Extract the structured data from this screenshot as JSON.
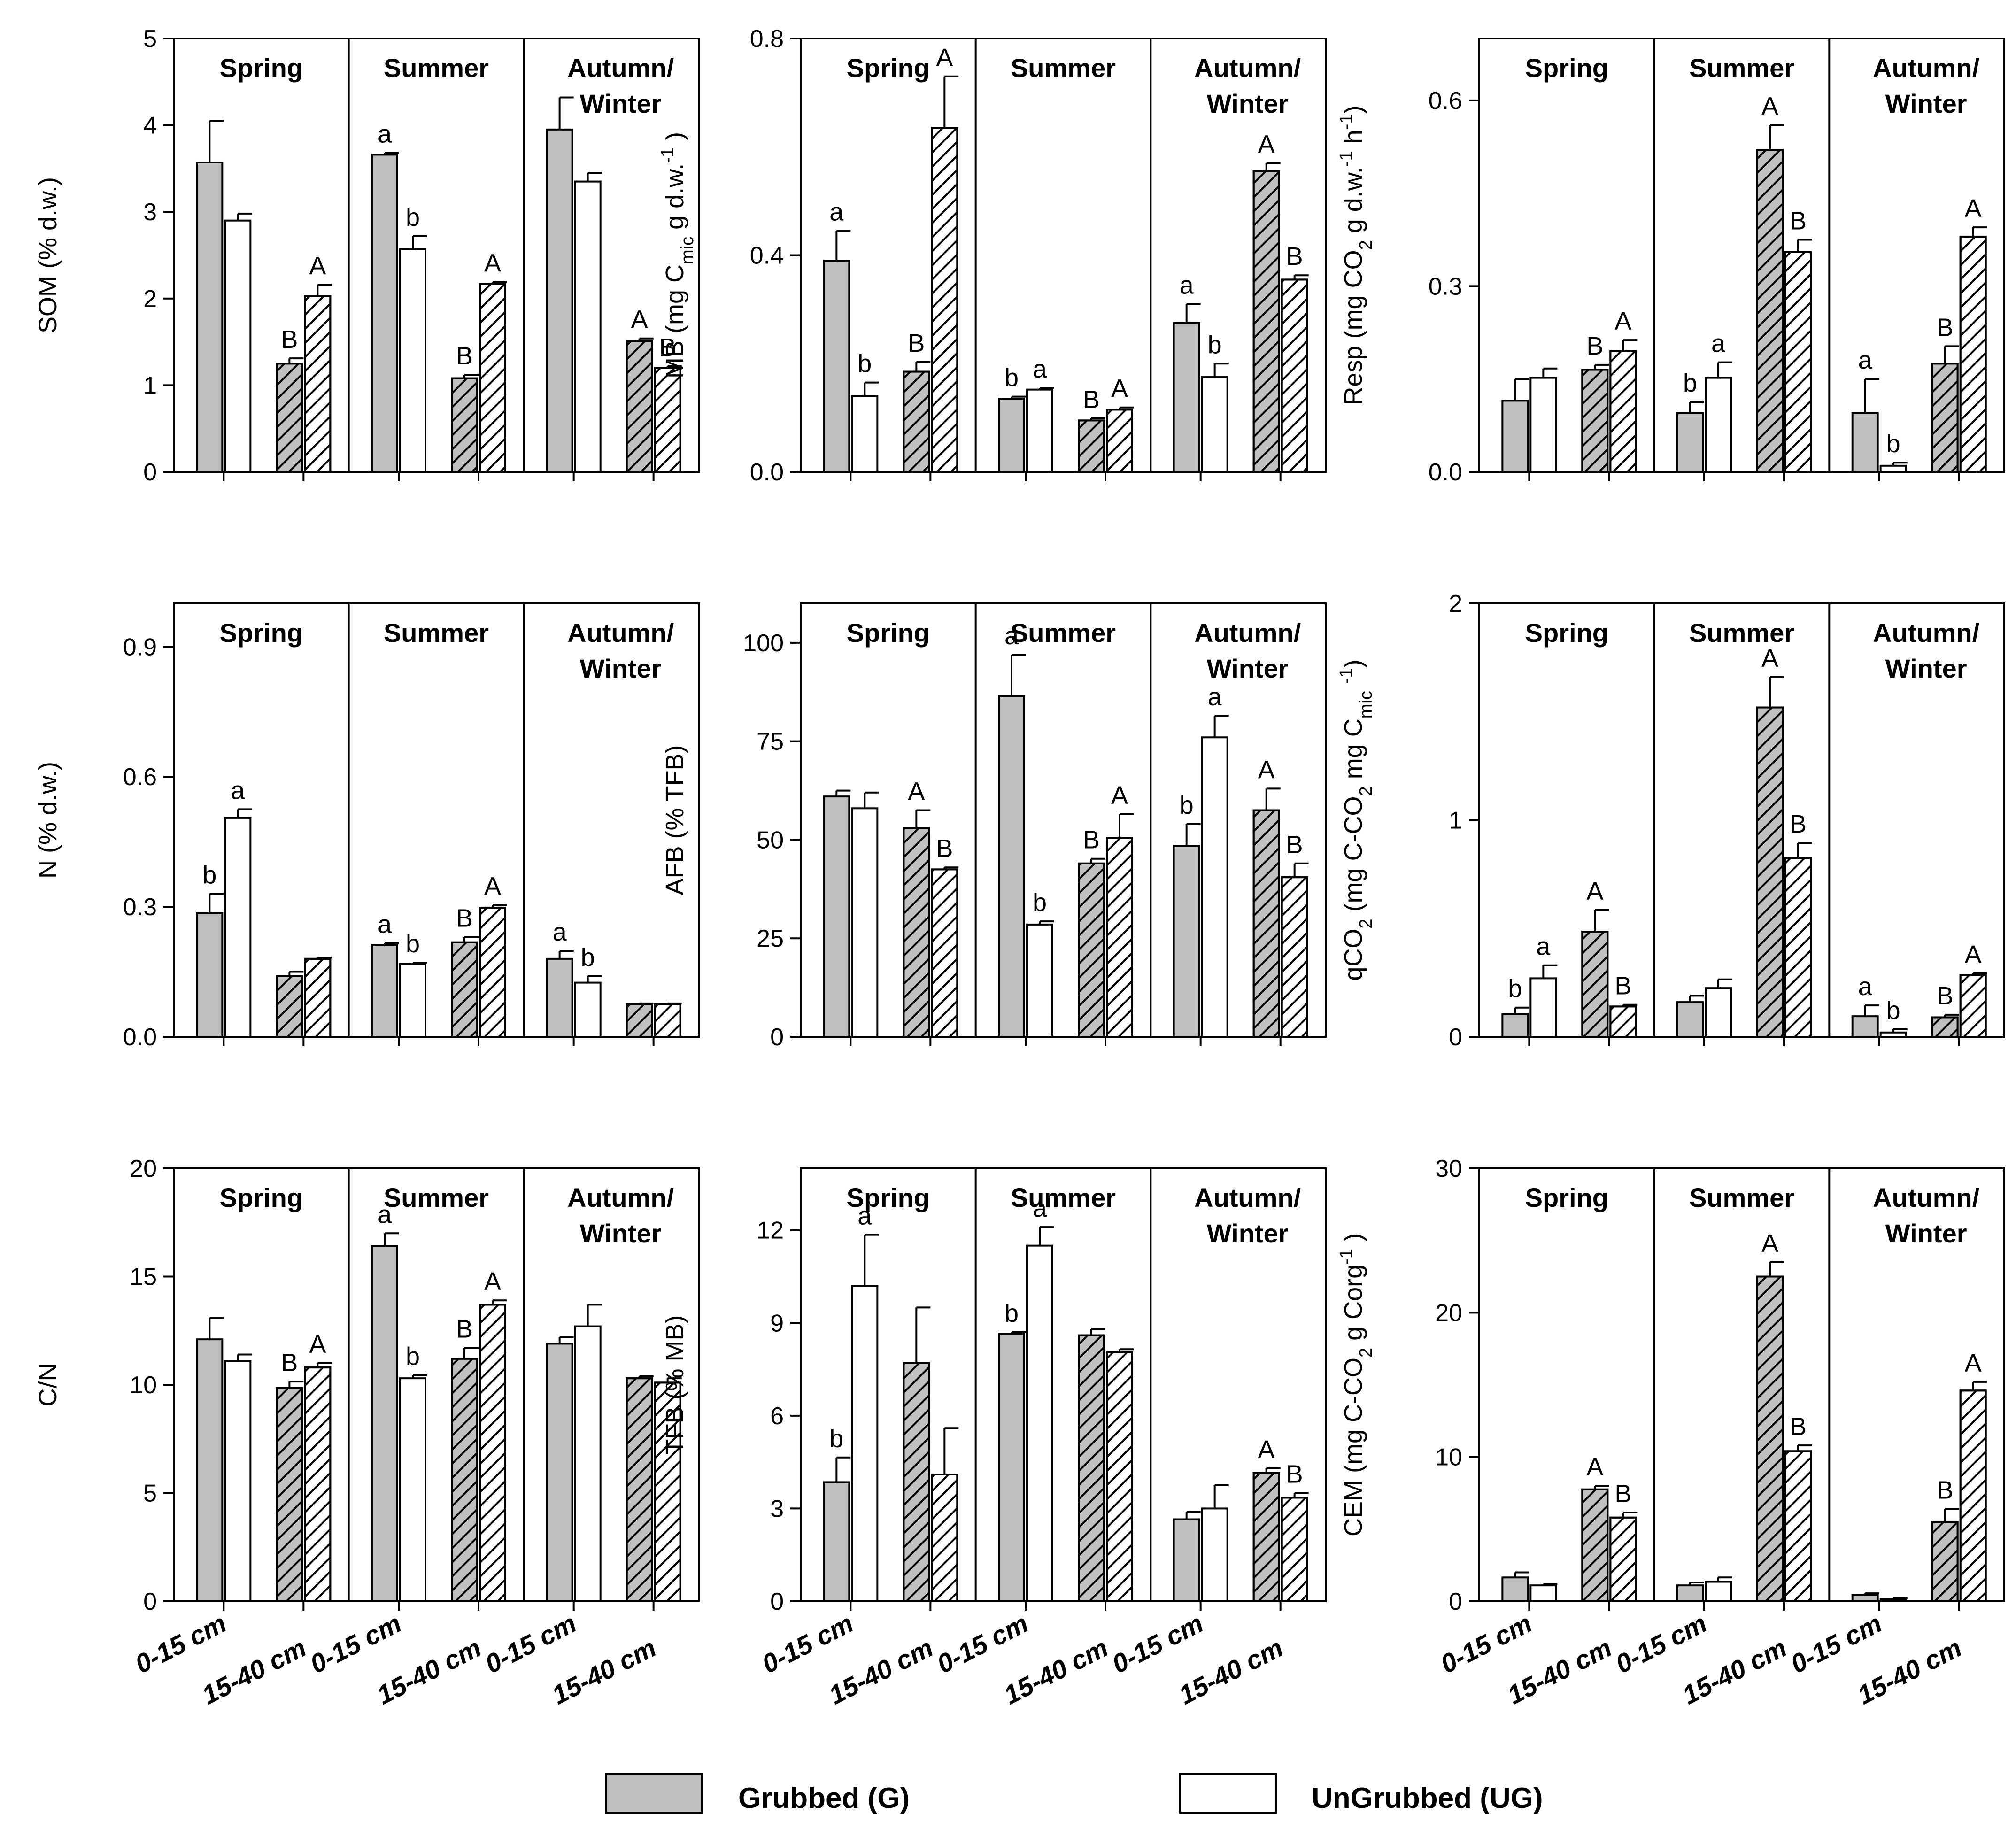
{
  "colors": {
    "grubbed": "#c0c0c0",
    "ungrubbed": "#ffffff",
    "stroke": "#000000"
  },
  "legend": [
    {
      "key": "grubbed",
      "label": "Grubbed (G)"
    },
    {
      "key": "ungrubbed",
      "label": "UnGrubbed (UG)"
    }
  ],
  "chart_data": [
    {
      "type": "bar",
      "id": "som",
      "ylabel": [
        {
          "t": "SOM (% d.w.)"
        }
      ],
      "ylim": [
        0,
        5
      ],
      "ticks": [
        "0",
        "1",
        "2",
        "3",
        "4",
        "5"
      ],
      "tick_values": [
        0,
        1,
        2,
        3,
        4,
        5
      ],
      "seasons": [
        [
          "Spring"
        ],
        [
          "Summer"
        ],
        [
          "Autumn/",
          "Winter"
        ]
      ],
      "x_categories": [],
      "values": [
        [
          3.57,
          2.9,
          1.25,
          2.03
        ],
        [
          3.66,
          2.57,
          1.08,
          2.17
        ],
        [
          3.95,
          3.35,
          1.51,
          1.2
        ]
      ],
      "errors": [
        [
          0.48,
          0.08,
          0.06,
          0.13
        ],
        [
          0.02,
          0.15,
          0.04,
          0.02
        ],
        [
          0.37,
          0.1,
          0.03,
          0.02
        ]
      ],
      "sig": [
        [
          "",
          "",
          "B",
          "A"
        ],
        [
          "a",
          "b",
          "B",
          "A"
        ],
        [
          "",
          "",
          "A",
          "B"
        ]
      ]
    },
    {
      "type": "bar",
      "id": "mb",
      "ylabel": [
        {
          "t": "MB (mg C"
        },
        {
          "t": "mic",
          "s": "sub"
        },
        {
          "t": " g d.w."
        },
        {
          "t": "-1",
          "s": "sup"
        },
        {
          "t": " )"
        }
      ],
      "ylim": [
        0,
        0.8
      ],
      "ticks": [
        "0.0",
        "0.4",
        "0.8"
      ],
      "tick_values": [
        0,
        0.4,
        0.8
      ],
      "seasons": [
        [
          "Spring"
        ],
        [
          "Summer"
        ],
        [
          "Autumn/",
          "Winter"
        ]
      ],
      "x_categories": [],
      "values": [
        [
          0.39,
          0.14,
          0.185,
          0.635
        ],
        [
          0.135,
          0.152,
          0.095,
          0.115
        ],
        [
          0.275,
          0.175,
          0.555,
          0.355
        ]
      ],
      "errors": [
        [
          0.055,
          0.025,
          0.018,
          0.095
        ],
        [
          0.004,
          0.003,
          0.004,
          0.004
        ],
        [
          0.035,
          0.025,
          0.015,
          0.008
        ]
      ],
      "sig": [
        [
          "a",
          "b",
          "B",
          "A"
        ],
        [
          "b",
          "a",
          "B",
          "A"
        ],
        [
          "a",
          "b",
          "A",
          "B"
        ]
      ]
    },
    {
      "type": "bar",
      "id": "resp",
      "ylabel": [
        {
          "t": "Resp (mg CO"
        },
        {
          "t": "2",
          "s": "sub"
        },
        {
          "t": " g d.w."
        },
        {
          "t": "-1",
          "s": "sup"
        },
        {
          "t": " h"
        },
        {
          "t": "-1",
          "s": "sup"
        },
        {
          "t": ")"
        }
      ],
      "ylim": [
        0,
        0.7
      ],
      "ticks": [
        "0.0",
        "0.3",
        "0.6"
      ],
      "tick_values": [
        0,
        0.3,
        0.6
      ],
      "seasons": [
        [
          "Spring"
        ],
        [
          "Summer"
        ],
        [
          "Autumn/",
          "Winter"
        ]
      ],
      "x_categories": [],
      "values": [
        [
          0.115,
          0.152,
          0.165,
          0.195
        ],
        [
          0.095,
          0.152,
          0.52,
          0.355
        ],
        [
          0.095,
          0.01,
          0.175,
          0.38
        ]
      ],
      "errors": [
        [
          0.035,
          0.015,
          0.008,
          0.018
        ],
        [
          0.018,
          0.025,
          0.04,
          0.02
        ],
        [
          0.055,
          0.005,
          0.028,
          0.015
        ]
      ],
      "sig": [
        [
          "",
          "",
          "B",
          "A"
        ],
        [
          "b",
          "a",
          "A",
          "B"
        ],
        [
          "a",
          "b",
          "B",
          "A"
        ]
      ]
    },
    {
      "type": "bar",
      "id": "n",
      "ylabel": [
        {
          "t": "N (% d.w.)"
        }
      ],
      "ylim": [
        0,
        1.0
      ],
      "ticks": [
        "0.0",
        "0.3",
        "0.6",
        "0.9"
      ],
      "tick_values": [
        0,
        0.3,
        0.6,
        0.9
      ],
      "seasons": [
        [
          "Spring"
        ],
        [
          "Summer"
        ],
        [
          "Autumn/",
          "Winter"
        ]
      ],
      "x_categories": [],
      "values": [
        [
          0.285,
          0.505,
          0.14,
          0.18
        ],
        [
          0.212,
          0.168,
          0.218,
          0.298
        ],
        [
          0.18,
          0.125,
          0.075,
          0.075
        ]
      ],
      "errors": [
        [
          0.045,
          0.02,
          0.01,
          0.003
        ],
        [
          0.004,
          0.003,
          0.012,
          0.006
        ],
        [
          0.018,
          0.015,
          0.002,
          0.002
        ]
      ],
      "sig": [
        [
          "b",
          "a",
          "",
          ""
        ],
        [
          "a",
          "b",
          "B",
          "A"
        ],
        [
          "a",
          "b",
          "",
          ""
        ]
      ]
    },
    {
      "type": "bar",
      "id": "afb",
      "ylabel": [
        {
          "t": "AFB (% TFB)"
        }
      ],
      "ylim": [
        0,
        110
      ],
      "ticks": [
        "0",
        "25",
        "50",
        "75",
        "100"
      ],
      "tick_values": [
        0,
        25,
        50,
        75,
        100
      ],
      "seasons": [
        [
          "Spring"
        ],
        [
          "Summer"
        ],
        [
          "Autumn/",
          "Winter"
        ]
      ],
      "x_categories": [],
      "values": [
        [
          61,
          58,
          53,
          42.5
        ],
        [
          86.5,
          28.5,
          44,
          50.5
        ],
        [
          48.5,
          76,
          57.5,
          40.5
        ]
      ],
      "errors": [
        [
          1.5,
          4,
          4.5,
          0.5
        ],
        [
          10.5,
          0.8,
          1.2,
          6
        ],
        [
          5.5,
          5.5,
          5.5,
          3.5
        ]
      ],
      "sig": [
        [
          "",
          "",
          "A",
          "B"
        ],
        [
          "a",
          "b",
          "B",
          "A"
        ],
        [
          "b",
          "a",
          "A",
          "B"
        ]
      ]
    },
    {
      "type": "bar",
      "id": "qco2",
      "ylabel": [
        {
          "t": "qCO"
        },
        {
          "t": "2",
          "s": "sub"
        },
        {
          "t": " (mg C-CO"
        },
        {
          "t": "2",
          "s": "sub"
        },
        {
          "t": " mg C"
        },
        {
          "t": "mic",
          "s": "sub"
        },
        {
          "t": " "
        },
        {
          "t": "-1",
          "s": "sup"
        },
        {
          "t": ")"
        }
      ],
      "ylim": [
        0,
        2
      ],
      "ticks": [
        "0",
        "1",
        "2"
      ],
      "tick_values": [
        0,
        1,
        2
      ],
      "seasons": [
        [
          "Spring"
        ],
        [
          "Summer"
        ],
        [
          "Autumn/",
          "Winter"
        ]
      ],
      "x_categories": [],
      "values": [
        [
          0.105,
          0.27,
          0.485,
          0.14
        ],
        [
          0.16,
          0.225,
          1.52,
          0.825
        ],
        [
          0.095,
          0.02,
          0.09,
          0.285
        ]
      ],
      "errors": [
        [
          0.03,
          0.06,
          0.1,
          0.008
        ],
        [
          0.03,
          0.04,
          0.14,
          0.07
        ],
        [
          0.05,
          0.015,
          0.012,
          0.008
        ]
      ],
      "sig": [
        [
          "b",
          "a",
          "A",
          "B"
        ],
        [
          "",
          "",
          "A",
          "B"
        ],
        [
          "a",
          "b",
          "B",
          "A"
        ]
      ]
    },
    {
      "type": "bar",
      "id": "cn",
      "ylabel": [
        {
          "t": "C/N"
        }
      ],
      "ylim": [
        0,
        20
      ],
      "ticks": [
        "0",
        "5",
        "10",
        "15",
        "20"
      ],
      "tick_values": [
        0,
        5,
        10,
        15,
        20
      ],
      "seasons": [
        [
          "Spring"
        ],
        [
          "Summer"
        ],
        [
          "Autumn/",
          "Winter"
        ]
      ],
      "x_categories": [
        "0-15 cm",
        "15-40 cm"
      ],
      "values": [
        [
          12.1,
          11.1,
          9.85,
          10.8
        ],
        [
          16.4,
          10.3,
          11.2,
          13.7
        ],
        [
          11.9,
          12.7,
          10.3,
          10.1
        ]
      ],
      "errors": [
        [
          1,
          0.3,
          0.3,
          0.2
        ],
        [
          0.6,
          0.15,
          0.5,
          0.2
        ],
        [
          0.3,
          1,
          0.1,
          0.2
        ]
      ],
      "sig": [
        [
          "",
          "",
          "B",
          "A"
        ],
        [
          "a",
          "b",
          "B",
          "A"
        ],
        [
          "",
          "",
          "",
          ""
        ]
      ]
    },
    {
      "type": "bar",
      "id": "tfb",
      "ylabel": [
        {
          "t": "TFB (% MB)"
        }
      ],
      "ylim": [
        0,
        14
      ],
      "ticks": [
        "0",
        "3",
        "6",
        "9",
        "12"
      ],
      "tick_values": [
        0,
        3,
        6,
        9,
        12
      ],
      "seasons": [
        [
          "Spring"
        ],
        [
          "Summer"
        ],
        [
          "Autumn/",
          "Winter"
        ]
      ],
      "x_categories": [
        "0-15 cm",
        "15-40 cm"
      ],
      "values": [
        [
          3.85,
          10.2,
          7.7,
          4.1
        ],
        [
          8.65,
          11.5,
          8.6,
          8.05
        ],
        [
          2.65,
          3,
          4.15,
          3.35
        ]
      ],
      "errors": [
        [
          0.8,
          1.65,
          1.8,
          1.5
        ],
        [
          0.05,
          0.6,
          0.2,
          0.1
        ],
        [
          0.25,
          0.75,
          0.15,
          0.15
        ]
      ],
      "sig": [
        [
          "b",
          "a",
          "",
          ""
        ],
        [
          "b",
          "a",
          "",
          ""
        ],
        [
          "",
          "",
          "A",
          "B"
        ]
      ]
    },
    {
      "type": "bar",
      "id": "cem",
      "ylabel": [
        {
          "t": "CEM (mg C-CO"
        },
        {
          "t": "2",
          "s": "sub"
        },
        {
          "t": " g Corg"
        },
        {
          "t": "-1",
          "s": "sup"
        },
        {
          "t": " )"
        }
      ],
      "ylim": [
        0,
        30
      ],
      "ticks": [
        "0",
        "10",
        "20",
        "30"
      ],
      "tick_values": [
        0,
        10,
        20,
        30
      ],
      "seasons": [
        [
          "Spring"
        ],
        [
          "Summer"
        ],
        [
          "Autumn/",
          "Winter"
        ]
      ],
      "x_categories": [
        "0-15 cm",
        "15-40 cm"
      ],
      "values": [
        [
          1.65,
          1.1,
          7.75,
          5.8
        ],
        [
          1.1,
          1.35,
          22.5,
          10.4
        ],
        [
          0.45,
          0.15,
          5.5,
          14.6
        ]
      ],
      "errors": [
        [
          0.35,
          0.1,
          0.25,
          0.35
        ],
        [
          0.2,
          0.3,
          1,
          0.4
        ],
        [
          0.1,
          0.05,
          0.9,
          0.6
        ]
      ],
      "sig": [
        [
          "",
          "",
          "A",
          "B"
        ],
        [
          "",
          "",
          "A",
          "B"
        ],
        [
          "",
          "",
          "B",
          "A"
        ]
      ]
    }
  ]
}
